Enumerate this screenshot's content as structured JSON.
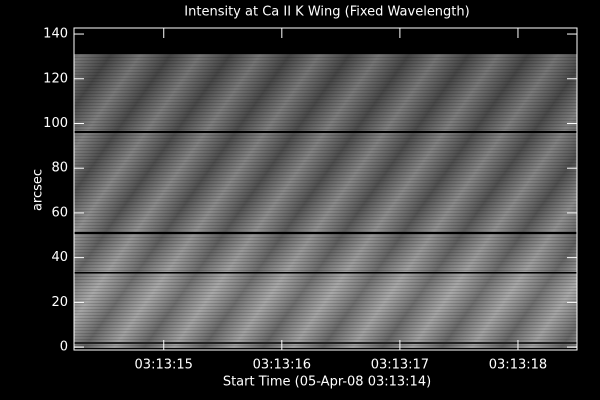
{
  "chart_data": {
    "type": "image",
    "title": "Intensity at Ca II K Wing (Fixed Wavelength)",
    "xlabel": "Start Time (05-Apr-08 03:13:14)",
    "ylabel": "arcsec",
    "xlim": [
      0.24,
      4.5
    ],
    "xticks": [
      {
        "value": 1,
        "label": "03:13:15"
      },
      {
        "value": 2,
        "label": "03:13:16"
      },
      {
        "value": 3,
        "label": "03:13:17"
      },
      {
        "value": 4,
        "label": "03:13:18"
      }
    ],
    "ylim": [
      -1.3,
      142.7
    ],
    "yticks": [
      0,
      20,
      40,
      60,
      80,
      100,
      120,
      140
    ]
  }
}
